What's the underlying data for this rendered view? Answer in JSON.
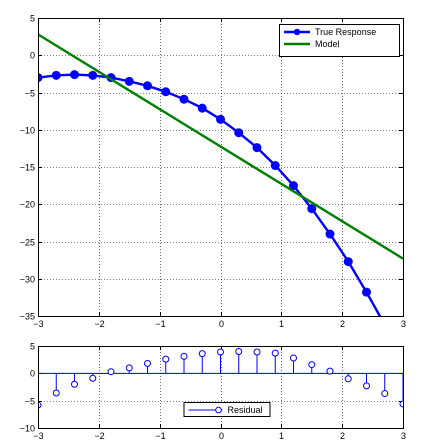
{
  "chart_data": [
    {
      "type": "line",
      "xlim": [
        -3,
        3
      ],
      "ylim": [
        -35,
        5
      ],
      "xticks": [
        -3,
        -2,
        -1,
        0,
        1,
        2,
        3
      ],
      "yticks": [
        5,
        0,
        -5,
        -10,
        -15,
        -20,
        -25,
        -30,
        -35
      ],
      "grid": true,
      "legend_position": "top-right",
      "series": [
        {
          "name": "True Response",
          "color": "#0000ff",
          "marker": "circle",
          "x": [
            -3,
            -2.7,
            -2.4,
            -2.1,
            -1.8,
            -1.5,
            -1.2,
            -0.9,
            -0.6,
            -0.3,
            0,
            0.3,
            0.6,
            0.9,
            1.2,
            1.5,
            1.8,
            2.1,
            2.4,
            2.7,
            3
          ],
          "y": [
            -3.0,
            -2.7,
            -2.6,
            -2.7,
            -3.0,
            -3.5,
            -4.1,
            -4.9,
            -5.9,
            -7.1,
            -8.6,
            -10.4,
            -12.4,
            -14.8,
            -17.5,
            -20.6,
            -24.0,
            -27.7,
            -31.8,
            -36.2,
            -41.0
          ]
        },
        {
          "name": "Model",
          "color": "#008000",
          "x": [
            -3,
            3
          ],
          "y": [
            2.8,
            -27.3
          ]
        }
      ]
    },
    {
      "type": "stem",
      "xlim": [
        -3,
        3
      ],
      "ylim": [
        -10,
        5
      ],
      "xticks": [
        -3,
        -2,
        -1,
        0,
        1,
        2,
        3
      ],
      "yticks": [
        5,
        0,
        -5,
        -10
      ],
      "grid": true,
      "legend_position": "bottom-center",
      "series": [
        {
          "name": "Residual",
          "color": "#0000ff",
          "marker": "open-circle",
          "x": [
            -3,
            -2.7,
            -2.4,
            -2.1,
            -1.8,
            -1.5,
            -1.2,
            -0.9,
            -0.6,
            -0.3,
            0,
            0.3,
            0.6,
            0.9,
            1.2,
            1.5,
            1.8,
            2.1,
            2.4,
            2.7,
            3
          ],
          "y": [
            -5.8,
            -3.6,
            -2.0,
            -0.9,
            0.3,
            1.0,
            1.8,
            2.6,
            3.1,
            3.6,
            3.9,
            4.0,
            3.9,
            3.7,
            2.8,
            1.6,
            0.4,
            -1.0,
            -2.3,
            -3.7,
            -5.6
          ]
        }
      ]
    }
  ]
}
